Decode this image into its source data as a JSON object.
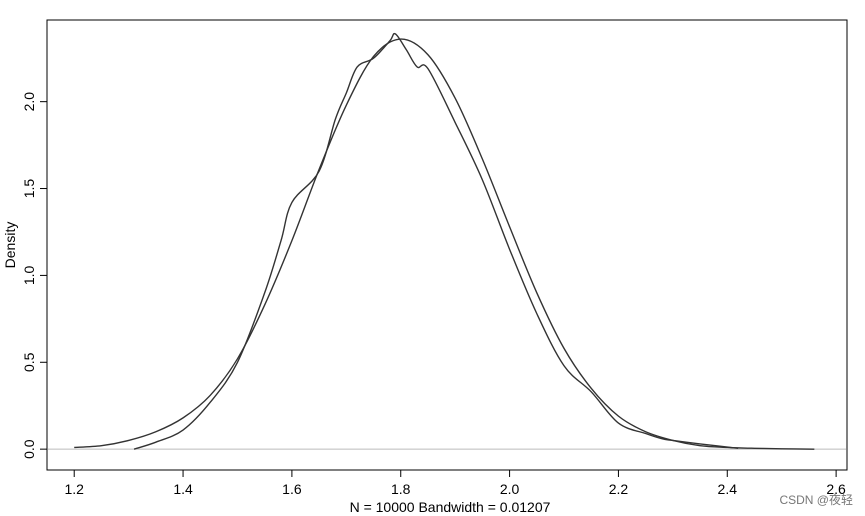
{
  "chart_data": {
    "type": "line",
    "title": "",
    "xlabel": "N = 10000   Bandwidth = 0.01207",
    "ylabel": "Density",
    "xlim": [
      1.15,
      2.62
    ],
    "ylim": [
      -0.12,
      2.47
    ],
    "x_ticks": [
      1.2,
      1.4,
      1.6,
      1.8,
      2.0,
      2.2,
      2.4,
      2.6
    ],
    "x_tick_labels": [
      "1.2",
      "1.4",
      "1.6",
      "1.8",
      "2.0",
      "2.2",
      "2.4",
      "2.6"
    ],
    "y_ticks": [
      0.0,
      0.5,
      1.0,
      1.5,
      2.0
    ],
    "y_tick_labels": [
      "0.0",
      "0.5",
      "1.0",
      "1.5",
      "2.0"
    ],
    "baseline": 0,
    "grid": false,
    "legend": "none",
    "line_color": "#333333",
    "baseline_color": "#bbbbbb",
    "series": [
      {
        "x": [
          1.2,
          1.25,
          1.3,
          1.35,
          1.4,
          1.45,
          1.5,
          1.55,
          1.6,
          1.65,
          1.7,
          1.75,
          1.8,
          1.85,
          1.9,
          1.95,
          2.0,
          2.05,
          2.1,
          2.15,
          2.2,
          2.25,
          2.3,
          2.35,
          2.4,
          2.45,
          2.5,
          2.56
        ],
        "y": [
          0.01,
          0.02,
          0.05,
          0.1,
          0.18,
          0.31,
          0.52,
          0.83,
          1.2,
          1.61,
          1.98,
          2.26,
          2.36,
          2.27,
          2.02,
          1.67,
          1.28,
          0.9,
          0.58,
          0.35,
          0.19,
          0.1,
          0.05,
          0.02,
          0.01,
          0.005,
          0.002,
          0.0
        ]
      },
      {
        "x": [
          1.31,
          1.35,
          1.4,
          1.45,
          1.5,
          1.55,
          1.58,
          1.6,
          1.65,
          1.68,
          1.7,
          1.72,
          1.75,
          1.78,
          1.79,
          1.81,
          1.83,
          1.85,
          1.9,
          1.95,
          2.0,
          2.05,
          2.1,
          2.15,
          2.2,
          2.25,
          2.28,
          2.3,
          2.35,
          2.42
        ],
        "y": [
          0.0,
          0.04,
          0.11,
          0.27,
          0.5,
          0.9,
          1.2,
          1.42,
          1.6,
          1.9,
          2.05,
          2.2,
          2.25,
          2.35,
          2.39,
          2.3,
          2.2,
          2.19,
          1.88,
          1.55,
          1.15,
          0.78,
          0.48,
          0.33,
          0.15,
          0.09,
          0.06,
          0.05,
          0.03,
          0.005
        ]
      }
    ]
  },
  "watermark": "CSDN @夜轻"
}
